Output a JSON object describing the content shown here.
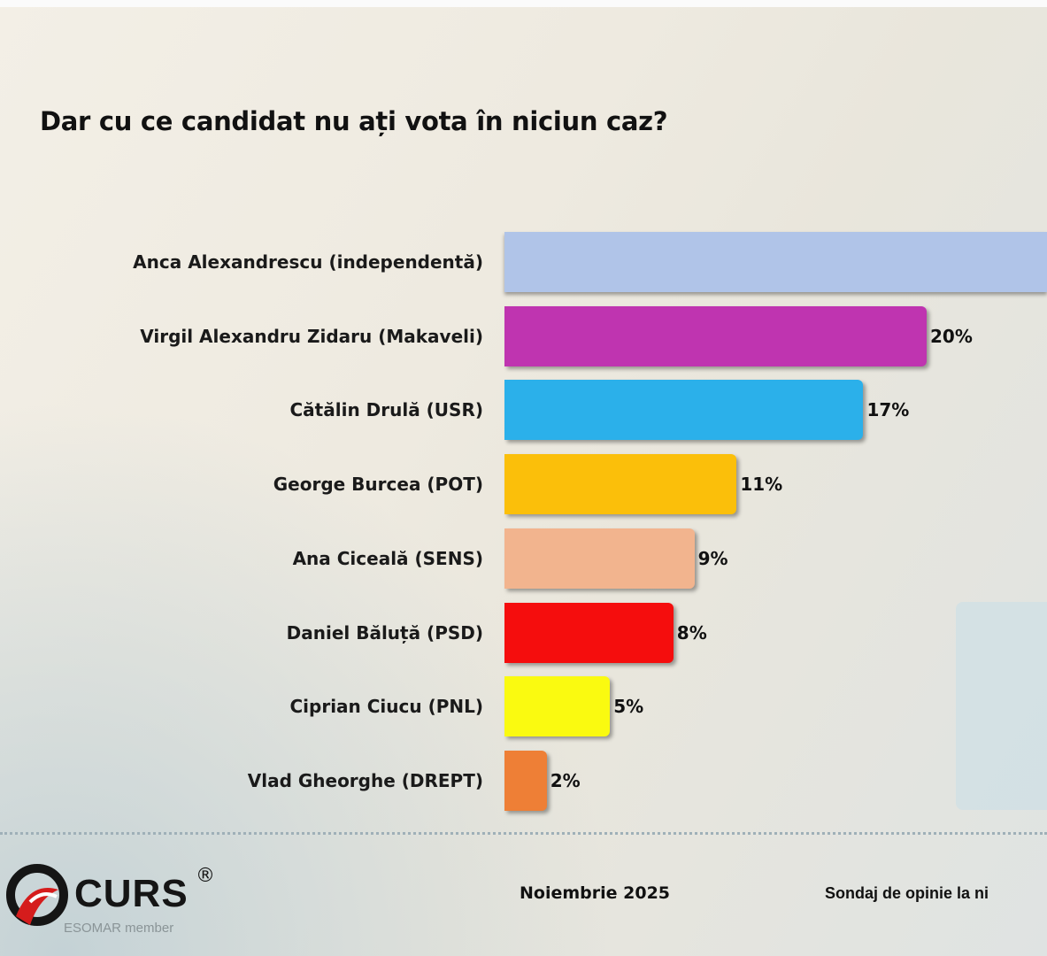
{
  "chart_data": {
    "type": "bar",
    "orientation": "horizontal",
    "title": "Dar cu ce candidat nu ați vota în niciun caz?",
    "unit": "%",
    "categories": [
      "Anca Alexandrescu (independentă)",
      "Virgil Alexandru Zidaru (Makaveli)",
      "Cătălin Drulă (USR)",
      "George Burcea (POT)",
      "Ana Ciceală (SENS)",
      "Daniel Băluță (PSD)",
      "Ciprian Ciucu (PNL)",
      "Vlad Gheorghe (DREPT)"
    ],
    "values": [
      null,
      20,
      17,
      11,
      9,
      8,
      5,
      2
    ],
    "value_labels": [
      "",
      "20%",
      "17%",
      "11%",
      "9%",
      "8%",
      "5%",
      "2%"
    ],
    "colors": [
      "#b0c4e8",
      "#bf34b0",
      "#2bb0ea",
      "#fbbf0a",
      "#f2b48e",
      "#f50d0d",
      "#fafa10",
      "#ee7f36"
    ],
    "grid": false,
    "legend": "none"
  },
  "footer": {
    "brand": "CURS",
    "registered": "®",
    "esomar": "ESOMAR member",
    "date": "Noiembrie 2025",
    "survey": "Sondaj de opinie la ni"
  }
}
